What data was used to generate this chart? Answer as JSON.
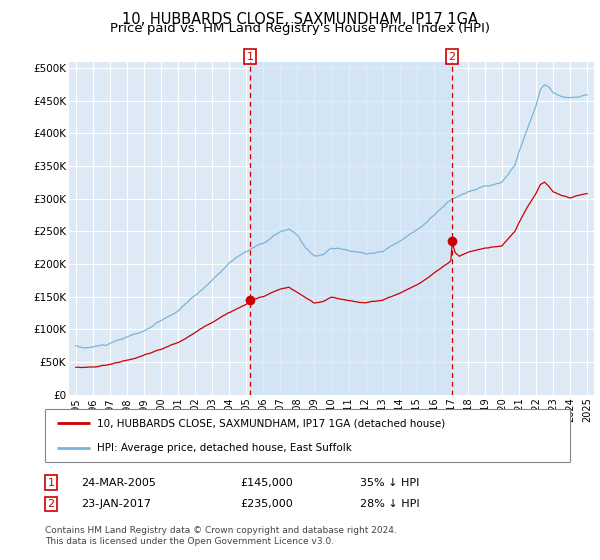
{
  "title": "10, HUBBARDS CLOSE, SAXMUNDHAM, IP17 1GA",
  "subtitle": "Price paid vs. HM Land Registry's House Price Index (HPI)",
  "title_fontsize": 10.5,
  "subtitle_fontsize": 9.5,
  "xlim_left": 1994.6,
  "xlim_right": 2025.4,
  "ylim": [
    0,
    510000
  ],
  "yticks": [
    0,
    50000,
    100000,
    150000,
    200000,
    250000,
    300000,
    350000,
    400000,
    450000,
    500000
  ],
  "ytick_labels": [
    "£0",
    "£50K",
    "£100K",
    "£150K",
    "£200K",
    "£250K",
    "£300K",
    "£350K",
    "£400K",
    "£450K",
    "£500K"
  ],
  "xticks": [
    1995,
    1996,
    1997,
    1998,
    1999,
    2000,
    2001,
    2002,
    2003,
    2004,
    2005,
    2006,
    2007,
    2008,
    2009,
    2010,
    2011,
    2012,
    2013,
    2014,
    2015,
    2016,
    2017,
    2018,
    2019,
    2020,
    2021,
    2022,
    2023,
    2024,
    2025
  ],
  "sale1_x": 2005.22,
  "sale1_y": 145000,
  "sale2_x": 2017.07,
  "sale2_y": 235000,
  "hpi_color": "#7ab4d8",
  "price_color": "#cc0000",
  "background_color": "#ddeaf5",
  "shade_color": "#d0e4f5",
  "grid_color": "#ffffff",
  "legend_label1": "10, HUBBARDS CLOSE, SAXMUNDHAM, IP17 1GA (detached house)",
  "legend_label2": "HPI: Average price, detached house, East Suffolk",
  "table_row1": [
    "1",
    "24-MAR-2005",
    "£145,000",
    "35% ↓ HPI"
  ],
  "table_row2": [
    "2",
    "23-JAN-2017",
    "£235,000",
    "28% ↓ HPI"
  ],
  "footnote": "Contains HM Land Registry data © Crown copyright and database right 2024.\nThis data is licensed under the Open Government Licence v3.0."
}
